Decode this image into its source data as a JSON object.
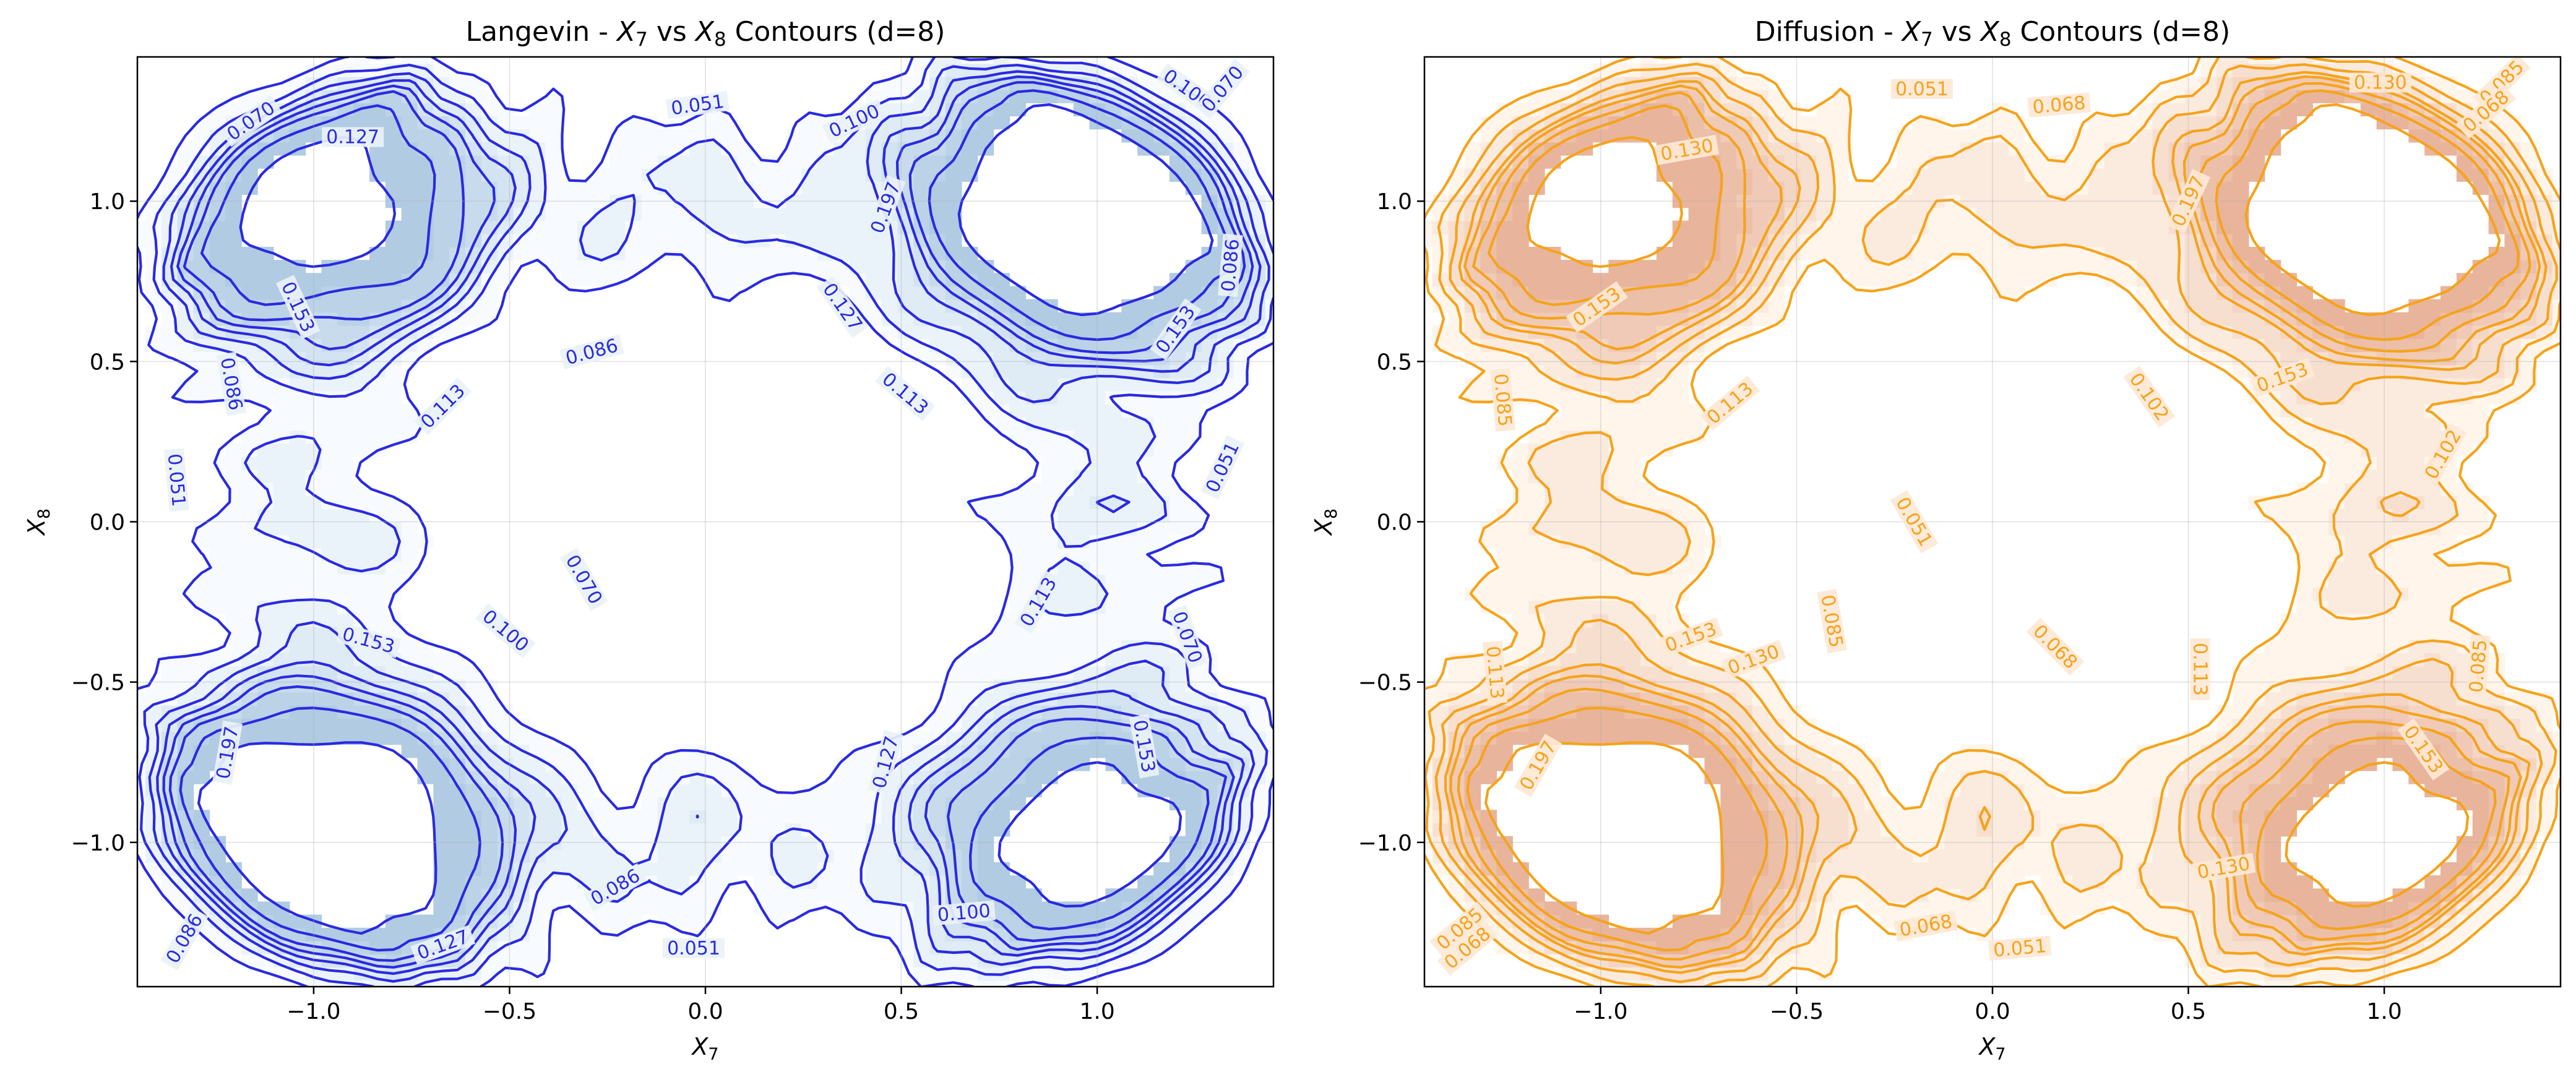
{
  "chart_data": [
    {
      "type": "contour",
      "title_parts": [
        "Langevin - ",
        "X",
        "7",
        " vs ",
        "X",
        "8",
        " Contours (d=8)"
      ],
      "xlabel": [
        "X",
        "7"
      ],
      "ylabel": [
        "X",
        "8"
      ],
      "xlim": [
        -1.45,
        1.45
      ],
      "ylim": [
        -1.45,
        1.45
      ],
      "xticks": [
        -1.0,
        -0.5,
        0.0,
        0.5,
        1.0
      ],
      "yticks": [
        -1.0,
        -0.5,
        0.0,
        0.5,
        1.0
      ],
      "xtick_labels": [
        "−1.0",
        "−0.5",
        "0.0",
        "0.5",
        "1.0"
      ],
      "ytick_labels": [
        "−1.0",
        "−0.5",
        "0.0",
        "0.5",
        "1.0"
      ],
      "grid": true,
      "colormap": "Blues",
      "line_color": "#2a2ae0",
      "levels": [
        0.051,
        0.07,
        0.086,
        0.1,
        0.113,
        0.127,
        0.153,
        0.197
      ],
      "contour_labels": [
        {
          "text": "0.070",
          "x": -1.16,
          "y": 1.25,
          "angle": -35
        },
        {
          "text": "0.127",
          "x": -0.9,
          "y": 1.2,
          "angle": 0
        },
        {
          "text": "0.051",
          "x": -0.02,
          "y": 1.3,
          "angle": -8
        },
        {
          "text": "0.100",
          "x": 0.38,
          "y": 1.25,
          "angle": -25
        },
        {
          "text": "0.100",
          "x": 1.23,
          "y": 1.35,
          "angle": 35
        },
        {
          "text": "0.070",
          "x": 1.32,
          "y": 1.35,
          "angle": -50
        },
        {
          "text": "0.086",
          "x": 1.34,
          "y": 0.8,
          "angle": -85
        },
        {
          "text": "0.197",
          "x": 0.46,
          "y": 0.98,
          "angle": -70
        },
        {
          "text": "0.153",
          "x": -1.04,
          "y": 0.67,
          "angle": 65
        },
        {
          "text": "0.127",
          "x": 0.35,
          "y": 0.67,
          "angle": 55
        },
        {
          "text": "0.153",
          "x": 1.2,
          "y": 0.6,
          "angle": -55
        },
        {
          "text": "0.086",
          "x": -0.29,
          "y": 0.53,
          "angle": -15
        },
        {
          "text": "0.113",
          "x": 0.51,
          "y": 0.4,
          "angle": 40
        },
        {
          "text": "0.086",
          "x": -1.21,
          "y": 0.43,
          "angle": 80
        },
        {
          "text": "0.113",
          "x": -0.67,
          "y": 0.36,
          "angle": -45
        },
        {
          "text": "0.051",
          "x": -1.35,
          "y": 0.13,
          "angle": 85
        },
        {
          "text": "0.051",
          "x": 1.32,
          "y": 0.17,
          "angle": -65
        },
        {
          "text": "0.070",
          "x": -0.31,
          "y": -0.18,
          "angle": 60
        },
        {
          "text": "0.113",
          "x": 0.85,
          "y": -0.25,
          "angle": -60
        },
        {
          "text": "0.100",
          "x": -0.51,
          "y": -0.34,
          "angle": 40
        },
        {
          "text": "0.070",
          "x": 1.23,
          "y": -0.36,
          "angle": 70
        },
        {
          "text": "0.153",
          "x": -0.86,
          "y": -0.37,
          "angle": 15
        },
        {
          "text": "0.197",
          "x": -1.22,
          "y": -0.72,
          "angle": -80
        },
        {
          "text": "0.153",
          "x": 1.12,
          "y": -0.7,
          "angle": 80
        },
        {
          "text": "0.127",
          "x": 0.46,
          "y": -0.75,
          "angle": -75
        },
        {
          "text": "0.086",
          "x": -0.23,
          "y": -1.14,
          "angle": -30
        },
        {
          "text": "0.100",
          "x": 0.66,
          "y": -1.22,
          "angle": -5
        },
        {
          "text": "0.127",
          "x": -0.67,
          "y": -1.32,
          "angle": -20
        },
        {
          "text": "0.086",
          "x": -1.33,
          "y": -1.3,
          "angle": -60
        },
        {
          "text": "0.051",
          "x": -0.03,
          "y": -1.33,
          "angle": 0
        }
      ]
    },
    {
      "type": "contour",
      "title_parts": [
        "Diffusion - ",
        "X",
        "7",
        " vs ",
        "X",
        "8",
        " Contours (d=8)"
      ],
      "xlabel": [
        "X",
        "7"
      ],
      "ylabel": [
        "X",
        "8"
      ],
      "xlim": [
        -1.45,
        1.45
      ],
      "ylim": [
        -1.45,
        1.45
      ],
      "xticks": [
        -1.0,
        -0.5,
        0.0,
        0.5,
        1.0
      ],
      "yticks": [
        -1.0,
        -0.5,
        0.0,
        0.5,
        1.0
      ],
      "xtick_labels": [
        "−1.0",
        "−0.5",
        "0.0",
        "0.5",
        "1.0"
      ],
      "ytick_labels": [
        "−1.0",
        "−0.5",
        "0.0",
        "0.5",
        "1.0"
      ],
      "grid": true,
      "colormap": "Oranges",
      "line_color": "#f5a31a",
      "levels": [
        0.051,
        0.068,
        0.085,
        0.102,
        0.113,
        0.13,
        0.153,
        0.197
      ],
      "contour_labels": [
        {
          "text": "0.051",
          "x": -0.18,
          "y": 1.35,
          "angle": 0
        },
        {
          "text": "0.068",
          "x": 0.17,
          "y": 1.3,
          "angle": -5
        },
        {
          "text": "0.130",
          "x": -0.78,
          "y": 1.16,
          "angle": -10
        },
        {
          "text": "0.130",
          "x": 0.99,
          "y": 1.37,
          "angle": 0
        },
        {
          "text": "0.085",
          "x": 1.3,
          "y": 1.37,
          "angle": -45
        },
        {
          "text": "0.068",
          "x": 1.26,
          "y": 1.28,
          "angle": -40
        },
        {
          "text": "0.197",
          "x": 0.5,
          "y": 1.0,
          "angle": -65
        },
        {
          "text": "0.153",
          "x": -1.01,
          "y": 0.67,
          "angle": -35
        },
        {
          "text": "0.153",
          "x": 0.74,
          "y": 0.45,
          "angle": -20
        },
        {
          "text": "0.102",
          "x": 0.4,
          "y": 0.39,
          "angle": 55
        },
        {
          "text": "0.085",
          "x": -1.25,
          "y": 0.38,
          "angle": 85
        },
        {
          "text": "0.113",
          "x": -0.67,
          "y": 0.37,
          "angle": -40
        },
        {
          "text": "0.102",
          "x": 1.15,
          "y": 0.21,
          "angle": -60
        },
        {
          "text": "0.051",
          "x": -0.2,
          "y": 0.0,
          "angle": 60
        },
        {
          "text": "0.085",
          "x": -0.41,
          "y": -0.31,
          "angle": 80
        },
        {
          "text": "0.153",
          "x": -0.77,
          "y": -0.36,
          "angle": -20
        },
        {
          "text": "0.130",
          "x": -0.61,
          "y": -0.43,
          "angle": -20
        },
        {
          "text": "0.068",
          "x": 0.16,
          "y": -0.39,
          "angle": 45
        },
        {
          "text": "0.113",
          "x": -1.27,
          "y": -0.47,
          "angle": 85
        },
        {
          "text": "0.113",
          "x": 0.53,
          "y": -0.46,
          "angle": 90
        },
        {
          "text": "0.085",
          "x": 1.24,
          "y": -0.45,
          "angle": -85
        },
        {
          "text": "0.197",
          "x": -1.16,
          "y": -0.76,
          "angle": -60
        },
        {
          "text": "0.153",
          "x": 1.1,
          "y": -0.71,
          "angle": 55
        },
        {
          "text": "0.130",
          "x": 0.59,
          "y": -1.08,
          "angle": -10
        },
        {
          "text": "0.068",
          "x": -0.17,
          "y": -1.26,
          "angle": -10
        },
        {
          "text": "0.051",
          "x": 0.07,
          "y": -1.33,
          "angle": -5
        },
        {
          "text": "0.085",
          "x": -1.36,
          "y": -1.27,
          "angle": -40
        },
        {
          "text": "0.068",
          "x": -1.34,
          "y": -1.33,
          "angle": -40
        }
      ]
    }
  ]
}
